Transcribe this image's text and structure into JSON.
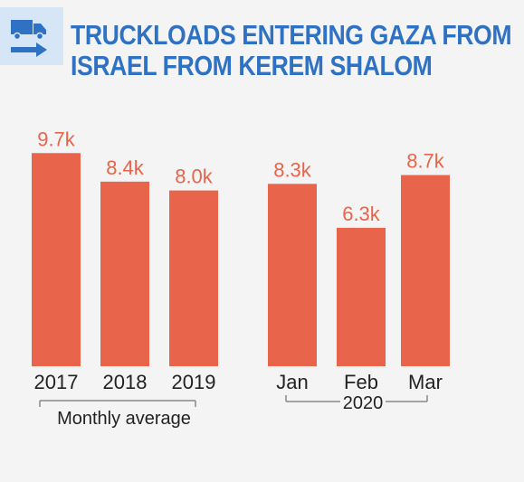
{
  "header": {
    "icon": "truck-arrow-icon",
    "title_line1": "TRUCKLOADS ENTERING GAZA FROM",
    "title_line2": "ISRAEL FROM KEREM SHALOM"
  },
  "colors": {
    "bar": "#e8644a",
    "value_label": "#e8644a",
    "title": "#2f72c4",
    "icon_bg": "#d6e6f7",
    "icon": "#2f72c4",
    "background": "#f4f4f4",
    "bracket": "#888888"
  },
  "chart_data": {
    "type": "bar",
    "title": "TRUCKLOADS ENTERING GAZA FROM ISRAEL FROM KEREM SHALOM",
    "categories": [
      "2017",
      "2018",
      "2019",
      "Jan",
      "Feb",
      "Mar"
    ],
    "values": [
      9.7,
      8.4,
      8.0,
      8.3,
      6.3,
      8.7
    ],
    "value_labels": [
      "9.7k",
      "8.4k",
      "8.0k",
      "8.3k",
      "6.3k",
      "8.7k"
    ],
    "unit": "thousand truckloads",
    "groups": [
      {
        "label": "Monthly average",
        "categories": [
          "2017",
          "2018",
          "2019"
        ]
      },
      {
        "label": "2020",
        "categories": [
          "Jan",
          "Feb",
          "Mar"
        ]
      }
    ],
    "ylim": [
      0,
      10
    ],
    "grid": false,
    "legend": "none"
  }
}
